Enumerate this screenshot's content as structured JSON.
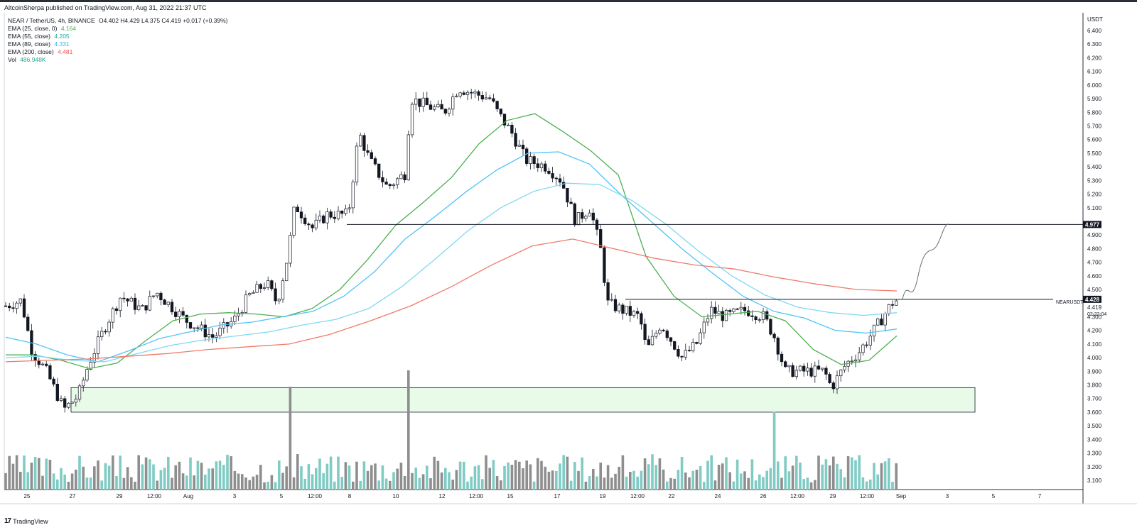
{
  "header": {
    "published": "AltcoinSherpa published on TradingView.com, Aug 31, 2022 21:37 UTC"
  },
  "legend": {
    "symbol": {
      "label": "NEAR / TetherUS, 4h, BINANCE",
      "ohlc": "O4.402 H4.429 L4.375 C4.419 +0.017 (+0.39%)"
    },
    "ema25": {
      "label": "EMA (25, close, 0)",
      "value": "4.164",
      "color": "#4caf50"
    },
    "ema55": {
      "label": "EMA (55, close)",
      "value": "4.205",
      "color": "#26a69a"
    },
    "ema89": {
      "label": "EMA (89, close)",
      "value": "4.331",
      "color": "#29b6f6"
    },
    "ema200": {
      "label": "EMA (200, close)",
      "value": "4.481",
      "color": "#ef5350"
    },
    "vol": {
      "label": "Vol",
      "value": "486.948K",
      "color": "#26a69a"
    }
  },
  "footer": {
    "logo": "17",
    "brand": "TradingView"
  },
  "chart_data": {
    "type": "candlestick",
    "title": "NEAR / TetherUS, 4h, BINANCE",
    "currency": "USDT",
    "ylim": [
      3.0,
      6.5
    ],
    "y_ticks": [
      "6.400",
      "6.300",
      "6.200",
      "6.100",
      "6.000",
      "5.900",
      "5.800",
      "5.700",
      "5.600",
      "5.500",
      "5.400",
      "5.300",
      "5.200",
      "5.100",
      "4.900",
      "4.800",
      "4.700",
      "4.600",
      "4.500",
      "4.300",
      "4.200",
      "4.100",
      "4.000",
      "3.900",
      "3.800",
      "3.700",
      "3.600",
      "3.500",
      "3.400",
      "3.300",
      "3.200",
      "3.100"
    ],
    "x_ticks": [
      "25",
      "27",
      "29",
      "12:00",
      "Aug",
      "3",
      "5",
      "12:00",
      "8",
      "10",
      "12",
      "12:00",
      "15",
      "17",
      "19",
      "12:00",
      "22",
      "24",
      "26",
      "12:00",
      "29",
      "12:00",
      "Sep",
      "3",
      "5",
      "7"
    ],
    "price_labels": {
      "resistance": "4.977",
      "last_price": "4.428",
      "close": "4.419",
      "countdown": "02:22:04",
      "symbol_tag": "NEARUSDT"
    },
    "levels": [
      {
        "name": "resistance",
        "price": 4.977
      },
      {
        "name": "support-line",
        "price": 4.428
      }
    ],
    "support_zone": {
      "low": 3.6,
      "high": 3.78,
      "color": "#e8fbe8"
    },
    "emas": [
      {
        "name": "EMA 25",
        "color": "#4caf50",
        "values": [
          4.02,
          4.02,
          3.98,
          3.92,
          3.96,
          4.12,
          4.27,
          4.32,
          4.33,
          4.32,
          4.3,
          4.36,
          4.5,
          4.72,
          4.97,
          5.14,
          5.32,
          5.57,
          5.74,
          5.79,
          5.66,
          5.52,
          5.34,
          4.74,
          4.45,
          4.3,
          4.32,
          4.34,
          4.27,
          4.06,
          3.95,
          3.98,
          4.16
        ]
      },
      {
        "name": "EMA 55",
        "color": "#4fc3f7",
        "values": [
          4.15,
          4.1,
          4.02,
          3.97,
          4.05,
          4.14,
          4.19,
          4.24,
          4.26,
          4.3,
          4.34,
          4.45,
          4.63,
          4.87,
          5.04,
          5.22,
          5.38,
          5.5,
          5.51,
          5.42,
          5.2,
          5.0,
          4.8,
          4.62,
          4.45,
          4.34,
          4.29,
          4.2,
          4.18,
          4.21
        ]
      },
      {
        "name": "EMA 89",
        "color": "#80d8f0",
        "values": [
          4.0,
          4.01,
          3.98,
          3.97,
          4.03,
          4.09,
          4.13,
          4.16,
          4.19,
          4.24,
          4.28,
          4.36,
          4.52,
          4.72,
          4.93,
          5.1,
          5.22,
          5.28,
          5.27,
          5.15,
          4.98,
          4.78,
          4.6,
          4.46,
          4.37,
          4.33,
          4.31,
          4.33
        ]
      },
      {
        "name": "EMA 200",
        "color": "#ef7a6a",
        "values": [
          3.97,
          3.98,
          3.99,
          4.01,
          4.03,
          4.06,
          4.08,
          4.1,
          4.17,
          4.27,
          4.38,
          4.52,
          4.68,
          4.82,
          4.87,
          4.8,
          4.73,
          4.68,
          4.65,
          4.59,
          4.54,
          4.5,
          4.49
        ]
      }
    ],
    "volume_spikes": [
      {
        "x": "Aug 5",
        "value": "high"
      },
      {
        "x": "Aug 10",
        "value": "high"
      },
      {
        "x": "Aug 26",
        "value": "high"
      }
    ],
    "projection": "up toward 4.977"
  }
}
